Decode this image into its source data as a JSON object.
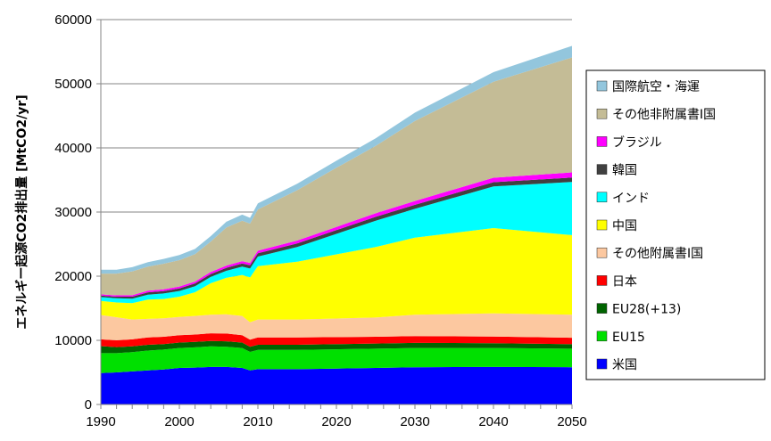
{
  "chart_data": {
    "type": "area",
    "stacked": true,
    "title": "",
    "xlabel": "",
    "ylabel": "エネルギー起源CO2排出量 [MtCO2/yr]",
    "xlim": [
      1990,
      2050
    ],
    "ylim": [
      0,
      60000
    ],
    "xticks": [
      1990,
      2000,
      2010,
      2020,
      2030,
      2040,
      2050
    ],
    "yticks": [
      0,
      10000,
      20000,
      30000,
      40000,
      50000,
      60000
    ],
    "grid": "horizontal",
    "legend_position": "right",
    "x": [
      1990,
      1992,
      1994,
      1996,
      1998,
      2000,
      2002,
      2004,
      2006,
      2008,
      2009,
      2010,
      2015,
      2020,
      2025,
      2030,
      2040,
      2050
    ],
    "series": [
      {
        "name": "米国",
        "color": "#0000ff",
        "values": [
          4900,
          5000,
          5150,
          5300,
          5450,
          5700,
          5750,
          5850,
          5850,
          5700,
          5300,
          5500,
          5500,
          5600,
          5700,
          5800,
          5850,
          5800
        ]
      },
      {
        "name": "EU15",
        "color": "#00e000",
        "values": [
          3100,
          3000,
          3000,
          3100,
          3100,
          3100,
          3150,
          3200,
          3150,
          3100,
          2900,
          3000,
          3000,
          3000,
          3000,
          3000,
          2950,
          2900
        ]
      },
      {
        "name": "EU28(+13)",
        "color": "#006400",
        "values": [
          1100,
          950,
          900,
          900,
          850,
          850,
          850,
          850,
          850,
          850,
          800,
          800,
          800,
          800,
          800,
          800,
          750,
          700
        ]
      },
      {
        "name": "日本",
        "color": "#ff0000",
        "values": [
          1050,
          1050,
          1100,
          1150,
          1150,
          1150,
          1150,
          1200,
          1200,
          1150,
          1100,
          1150,
          1150,
          1100,
          1050,
          1050,
          1050,
          1000
        ]
      },
      {
        "name": "その他附属書Ⅰ国",
        "color": "#fcc8a0",
        "values": [
          3800,
          3600,
          3100,
          2900,
          2900,
          2850,
          2900,
          2900,
          3000,
          3000,
          2700,
          2800,
          2800,
          2900,
          3000,
          3350,
          3600,
          3600
        ]
      },
      {
        "name": "中国",
        "color": "#ffff00",
        "values": [
          2200,
          2300,
          2550,
          3000,
          3000,
          3150,
          3700,
          4900,
          5700,
          6400,
          7000,
          8300,
          9000,
          10000,
          11000,
          12000,
          13300,
          12400
        ]
      },
      {
        "name": "インド",
        "color": "#00ffff",
        "values": [
          600,
          650,
          700,
          780,
          850,
          900,
          950,
          1000,
          1100,
          1300,
          1400,
          1500,
          2300,
          3200,
          4100,
          4500,
          6500,
          8300
        ]
      },
      {
        "name": "韓国",
        "color": "#404040",
        "values": [
          220,
          260,
          300,
          350,
          370,
          400,
          420,
          440,
          460,
          480,
          490,
          520,
          550,
          580,
          600,
          620,
          650,
          680
        ]
      },
      {
        "name": "ブラジル",
        "color": "#ff00ff",
        "values": [
          200,
          210,
          230,
          250,
          270,
          290,
          300,
          320,
          340,
          370,
          380,
          400,
          450,
          500,
          550,
          600,
          700,
          800
        ]
      },
      {
        "name": "その他非附属書Ⅰ国",
        "color": "#c4bc96",
        "values": [
          3230,
          3380,
          3720,
          3770,
          4010,
          4110,
          4280,
          4740,
          5950,
          6300,
          6130,
          6430,
          7850,
          9220,
          10500,
          12480,
          14950,
          17920
        ]
      },
      {
        "name": "国際航空・海運",
        "color": "#93c6dd",
        "values": [
          600,
          600,
          650,
          700,
          750,
          800,
          800,
          850,
          900,
          950,
          900,
          950,
          1000,
          1100,
          1200,
          1300,
          1500,
          1800
        ]
      }
    ]
  }
}
